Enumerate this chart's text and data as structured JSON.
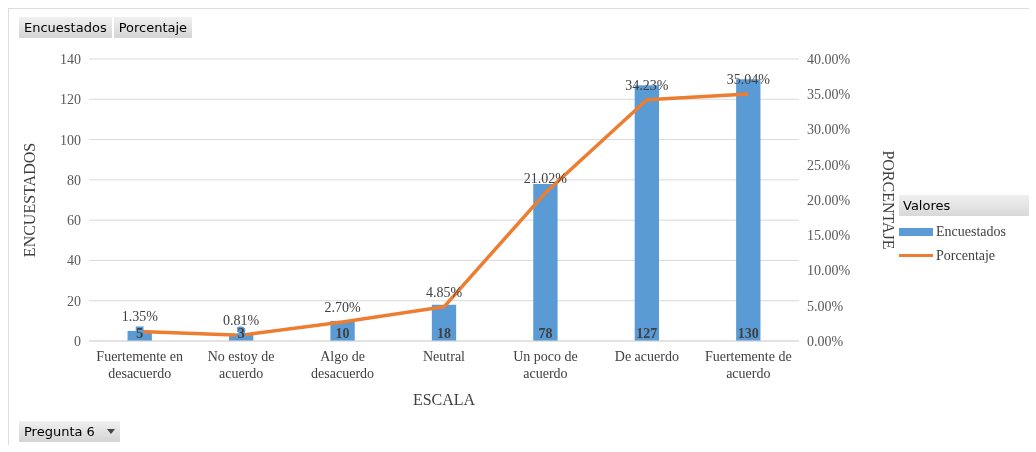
{
  "chart_data": {
    "type": "bar",
    "xlabel": "ESCALA",
    "ylabel": "ENCUESTADOS",
    "y2label": "PORCENTAJE",
    "legend_title": "Valores",
    "legend": "right",
    "grid": "y",
    "categories": [
      "Fuertemente en desacuerdo",
      "No estoy de acuerdo",
      "Algo de desacuerdo",
      "Neutral",
      "Un poco de acuerdo",
      "De acuerdo",
      "Fuertemente de acuerdo"
    ],
    "series": [
      {
        "name": "Encuestados",
        "color": "#5b9bd5",
        "values": [
          5,
          3,
          10,
          18,
          78,
          127,
          130
        ],
        "data_labels": true
      },
      {
        "name": "Porcentaje",
        "type": "line",
        "axis": "y2",
        "color": "#ed7d31",
        "values": [
          1.35,
          0.81,
          2.7,
          4.85,
          21.02,
          34.23,
          35.04
        ],
        "value_labels": [
          "1.35%",
          "0.81%",
          "2.70%",
          "4.85%",
          "21.02%",
          "34.23%",
          "35.04%"
        ],
        "marker": "none"
      }
    ],
    "ylim": [
      0,
      140
    ],
    "yticks": [
      0,
      20,
      40,
      60,
      80,
      100,
      120,
      140
    ],
    "y2lim": [
      0,
      40
    ],
    "y2ticks": [
      {
        "value": 0,
        "label": "0.00%"
      },
      {
        "value": 5,
        "label": "5.00%"
      },
      {
        "value": 10,
        "label": "10.00%"
      },
      {
        "value": 15,
        "label": "15.00%"
      },
      {
        "value": 20,
        "label": "20.00%"
      },
      {
        "value": 25,
        "label": "25.00%"
      },
      {
        "value": 30,
        "label": "30.00%"
      },
      {
        "value": 35,
        "label": "35.00%"
      },
      {
        "value": 40,
        "label": "40.00%"
      }
    ],
    "annotations": [
      "Encuestados",
      "Porcentaje",
      "Pregunta 6"
    ]
  }
}
